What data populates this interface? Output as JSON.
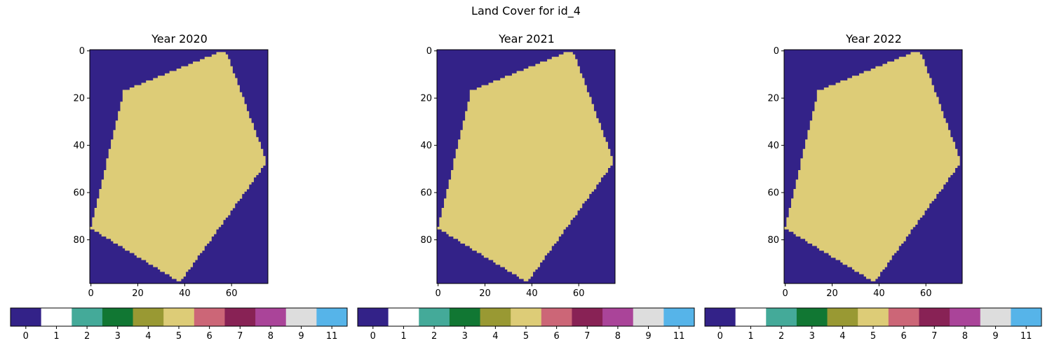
{
  "figure_title": "Land Cover for id_4",
  "chart_data": [
    {
      "type": "heatmap",
      "title": "Year 2020",
      "grid_shape": [
        99,
        76
      ],
      "xlim": [
        -0.5,
        75.5
      ],
      "ylim": [
        98.5,
        -0.5
      ],
      "xticks": [
        0,
        20,
        40,
        60
      ],
      "yticks": [
        0,
        20,
        40,
        60,
        80
      ],
      "polygon_class": 5,
      "background_class": 0,
      "polygon_vertices": [
        [
          56,
          0
        ],
        [
          58,
          1
        ],
        [
          75,
          47
        ],
        [
          38,
          98
        ],
        [
          0,
          75
        ],
        [
          14,
          17
        ]
      ]
    },
    {
      "type": "heatmap",
      "title": "Year 2021",
      "grid_shape": [
        99,
        76
      ],
      "xlim": [
        -0.5,
        75.5
      ],
      "ylim": [
        98.5,
        -0.5
      ],
      "xticks": [
        0,
        20,
        40,
        60
      ],
      "yticks": [
        0,
        20,
        40,
        60,
        80
      ],
      "polygon_class": 5,
      "background_class": 0,
      "polygon_vertices": [
        [
          56,
          0
        ],
        [
          58,
          1
        ],
        [
          75,
          47
        ],
        [
          38,
          98
        ],
        [
          0,
          75
        ],
        [
          14,
          17
        ]
      ]
    },
    {
      "type": "heatmap",
      "title": "Year 2022",
      "grid_shape": [
        99,
        76
      ],
      "xlim": [
        -0.5,
        75.5
      ],
      "ylim": [
        98.5,
        -0.5
      ],
      "xticks": [
        0,
        20,
        40,
        60
      ],
      "yticks": [
        0,
        20,
        40,
        60,
        80
      ],
      "polygon_class": 5,
      "background_class": 0,
      "polygon_vertices": [
        [
          56,
          0
        ],
        [
          58,
          1
        ],
        [
          75,
          47
        ],
        [
          38,
          98
        ],
        [
          0,
          75
        ],
        [
          14,
          17
        ]
      ]
    }
  ],
  "colorbar": {
    "segment_colors": [
      "#332288",
      "#ffffff",
      "#44aa99",
      "#117733",
      "#999933",
      "#ddcc77",
      "#cc6677",
      "#882255",
      "#aa4499",
      "#dddddd",
      "#56b4e9"
    ],
    "tick_labels": [
      "0",
      "1",
      "2",
      "3",
      "4",
      "5",
      "6",
      "7",
      "8",
      "9",
      "11"
    ]
  }
}
